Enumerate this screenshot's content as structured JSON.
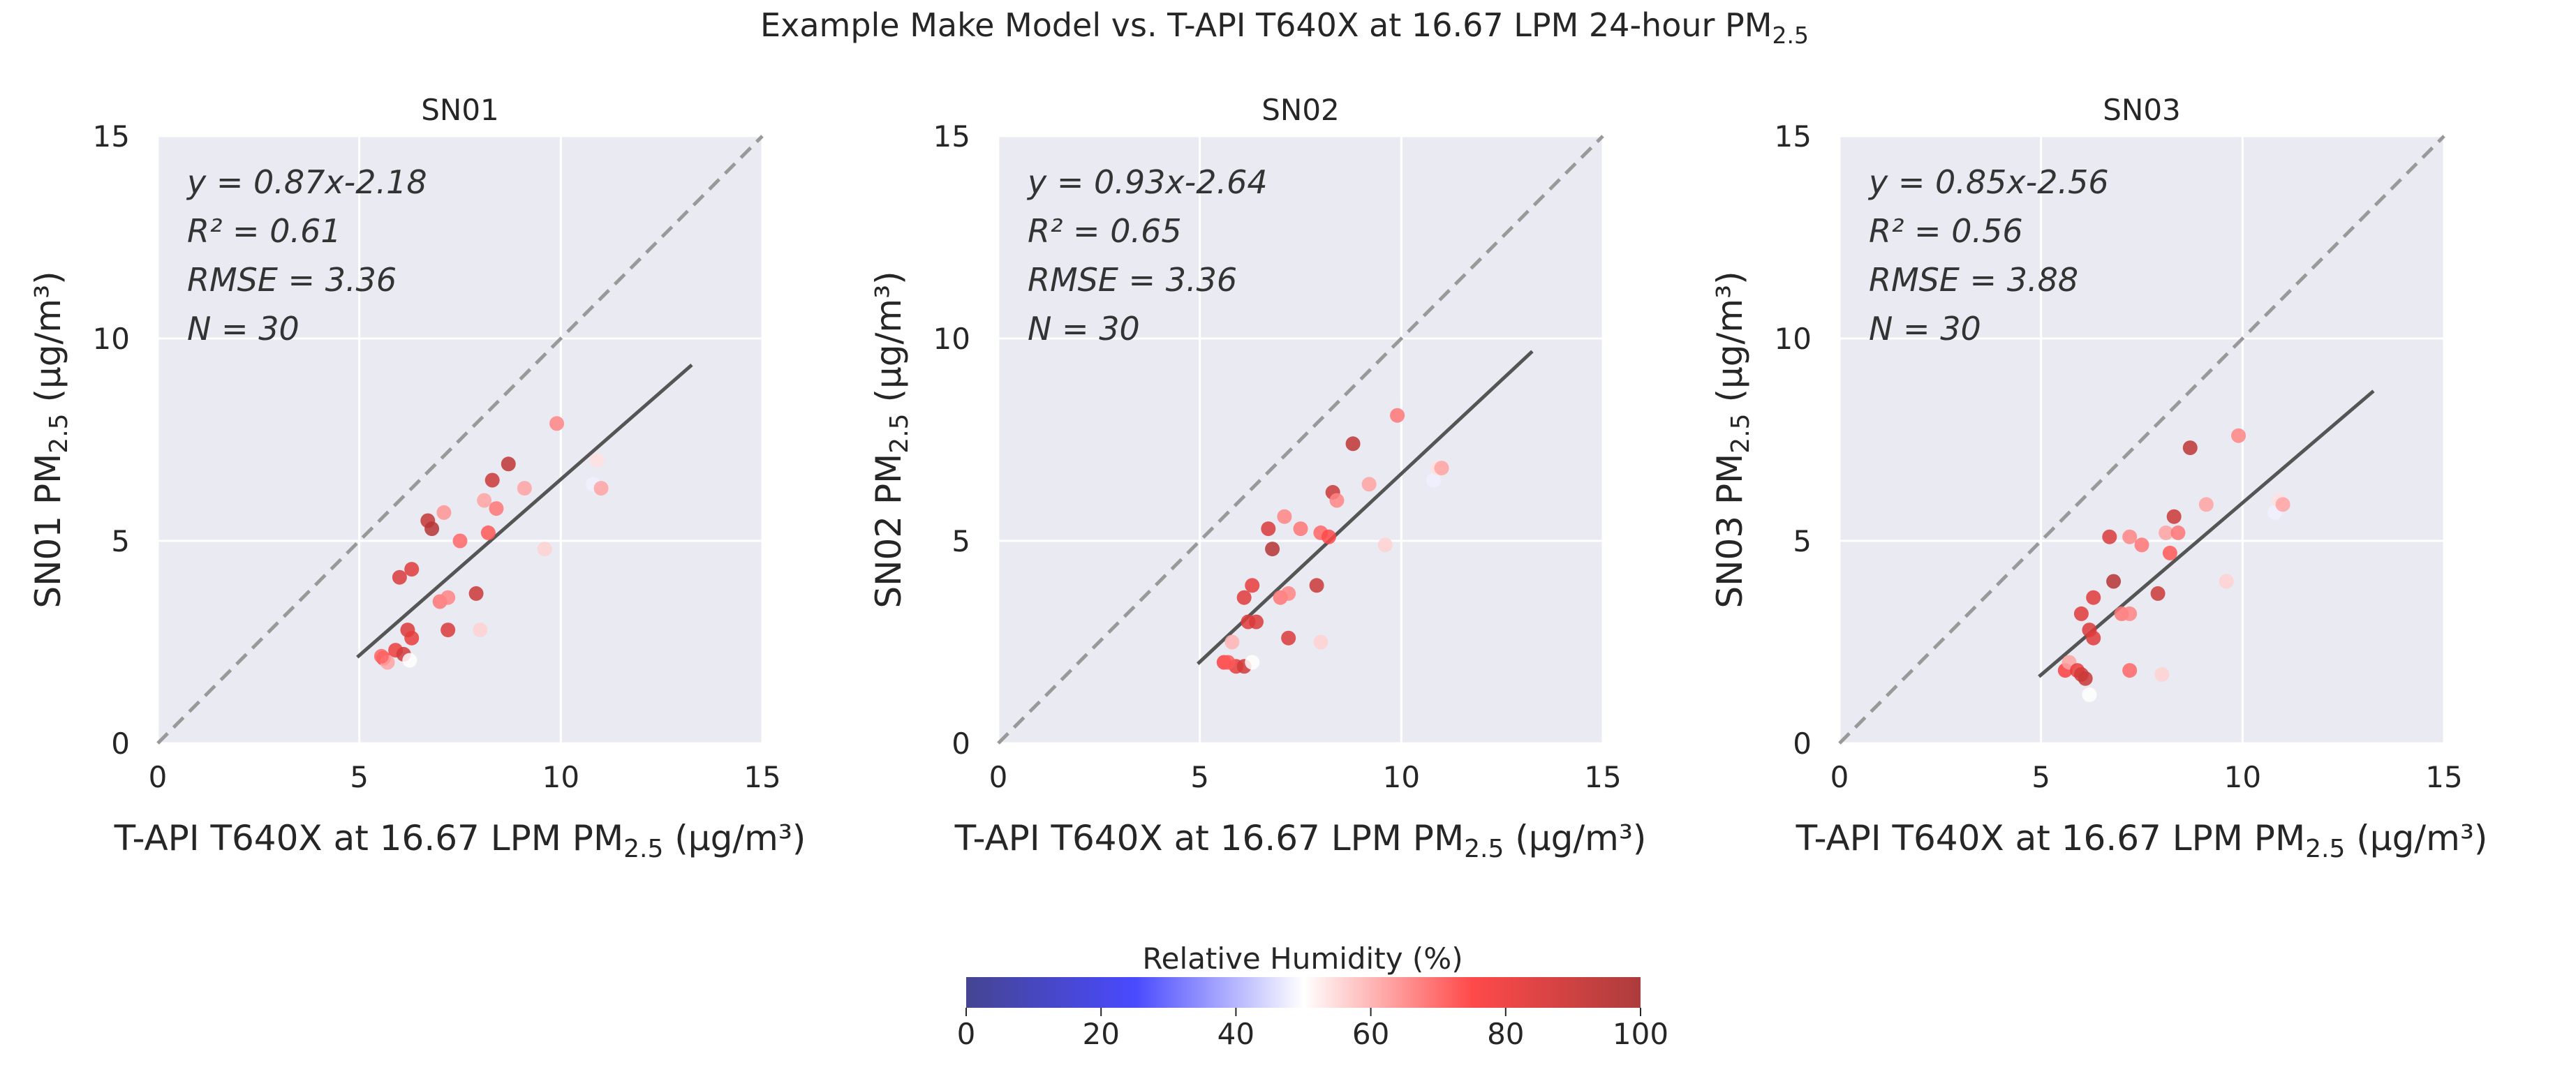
{
  "figure": {
    "title": "Example Make Model vs. T-API T640X at 16.67 LPM 24-hour PM",
    "title_sub": "2.5"
  },
  "colorbar": {
    "label": "Relative Humidity (%)",
    "ticks": [
      "0",
      "20",
      "40",
      "60",
      "80",
      "100"
    ],
    "range": [
      0,
      100
    ],
    "colormap": [
      "#3b3b8c",
      "#4040ff",
      "#ffffff",
      "#ff4040",
      "#a83232"
    ]
  },
  "colors": {
    "panel_bg": "#eaeaf2",
    "grid": "#ffffff",
    "fit_line": "#555555",
    "one_to_one": "#999999",
    "text": "#262626"
  },
  "chart_data": [
    {
      "type": "scatter",
      "title": "SN01",
      "xlabel": "T-API T640X at 16.67 LPM PM",
      "ylabel": "SN01 PM",
      "label_sub": "2.5",
      "label_unit": "(μg/m³)",
      "xlim": [
        0,
        15
      ],
      "ylim": [
        0,
        15
      ],
      "xticks": [
        "0",
        "5",
        "10",
        "15"
      ],
      "yticks": [
        "0",
        "5",
        "10",
        "15"
      ],
      "grid": true,
      "one_to_one_line": true,
      "fit": {
        "slope": 0.87,
        "intercept": -2.18,
        "x_range": [
          4.95,
          13.25
        ]
      },
      "stats": {
        "eq": "y = 0.87x-2.18",
        "r2": "R² = 0.61",
        "rmse": "RMSE = 3.36",
        "n": "N = 30"
      },
      "points": [
        {
          "x": 5.6,
          "y": 2.1,
          "rh": 75
        },
        {
          "x": 5.7,
          "y": 2.0,
          "rh": 62
        },
        {
          "x": 5.9,
          "y": 2.3,
          "rh": 80
        },
        {
          "x": 6.1,
          "y": 2.2,
          "rh": 88
        },
        {
          "x": 6.2,
          "y": 2.8,
          "rh": 85
        },
        {
          "x": 6.3,
          "y": 2.6,
          "rh": 82
        },
        {
          "x": 6.0,
          "y": 4.1,
          "rh": 86
        },
        {
          "x": 6.3,
          "y": 4.3,
          "rh": 84
        },
        {
          "x": 6.7,
          "y": 5.5,
          "rh": 92
        },
        {
          "x": 6.8,
          "y": 5.3,
          "rh": 96
        },
        {
          "x": 7.0,
          "y": 3.5,
          "rh": 68
        },
        {
          "x": 7.2,
          "y": 3.6,
          "rh": 66
        },
        {
          "x": 7.1,
          "y": 5.7,
          "rh": 64
        },
        {
          "x": 7.2,
          "y": 2.8,
          "rh": 86
        },
        {
          "x": 7.5,
          "y": 5.0,
          "rh": 70
        },
        {
          "x": 7.9,
          "y": 3.7,
          "rh": 90
        },
        {
          "x": 8.0,
          "y": 2.8,
          "rh": 56
        },
        {
          "x": 8.1,
          "y": 6.0,
          "rh": 62
        },
        {
          "x": 8.2,
          "y": 5.2,
          "rh": 72
        },
        {
          "x": 8.3,
          "y": 6.5,
          "rh": 90
        },
        {
          "x": 8.4,
          "y": 5.8,
          "rh": 68
        },
        {
          "x": 8.7,
          "y": 6.9,
          "rh": 94
        },
        {
          "x": 9.1,
          "y": 6.3,
          "rh": 62
        },
        {
          "x": 9.6,
          "y": 4.8,
          "rh": 56
        },
        {
          "x": 9.9,
          "y": 7.9,
          "rh": 66
        },
        {
          "x": 10.8,
          "y": 6.4,
          "rh": 48
        },
        {
          "x": 10.9,
          "y": 7.0,
          "rh": 54
        },
        {
          "x": 11.0,
          "y": 6.3,
          "rh": 62
        },
        {
          "x": 6.25,
          "y": 2.05,
          "rh": 50
        },
        {
          "x": 5.55,
          "y": 2.15,
          "rh": 70
        }
      ]
    },
    {
      "type": "scatter",
      "title": "SN02",
      "xlabel": "T-API T640X at 16.67 LPM PM",
      "ylabel": "SN02 PM",
      "label_sub": "2.5",
      "label_unit": "(μg/m³)",
      "xlim": [
        0,
        15
      ],
      "ylim": [
        0,
        15
      ],
      "xticks": [
        "0",
        "5",
        "10",
        "15"
      ],
      "yticks": [
        "0",
        "5",
        "10",
        "15"
      ],
      "grid": true,
      "one_to_one_line": true,
      "fit": {
        "slope": 0.93,
        "intercept": -2.64,
        "x_range": [
          4.95,
          13.25
        ]
      },
      "stats": {
        "eq": "y = 0.93x-2.64",
        "r2": "R² = 0.65",
        "rmse": "RMSE = 3.36",
        "n": "N = 30"
      },
      "points": [
        {
          "x": 5.6,
          "y": 2.0,
          "rh": 76
        },
        {
          "x": 5.8,
          "y": 2.5,
          "rh": 60
        },
        {
          "x": 5.9,
          "y": 1.9,
          "rh": 82
        },
        {
          "x": 6.1,
          "y": 1.9,
          "rh": 88
        },
        {
          "x": 6.2,
          "y": 3.0,
          "rh": 84
        },
        {
          "x": 6.3,
          "y": 2.0,
          "rh": 50
        },
        {
          "x": 6.1,
          "y": 3.6,
          "rh": 84
        },
        {
          "x": 6.3,
          "y": 3.9,
          "rh": 82
        },
        {
          "x": 6.4,
          "y": 3.0,
          "rh": 86
        },
        {
          "x": 6.7,
          "y": 5.3,
          "rh": 86
        },
        {
          "x": 6.8,
          "y": 4.8,
          "rh": 96
        },
        {
          "x": 7.0,
          "y": 3.6,
          "rh": 68
        },
        {
          "x": 7.2,
          "y": 3.7,
          "rh": 66
        },
        {
          "x": 7.1,
          "y": 5.6,
          "rh": 66
        },
        {
          "x": 7.5,
          "y": 5.3,
          "rh": 68
        },
        {
          "x": 7.9,
          "y": 3.9,
          "rh": 90
        },
        {
          "x": 8.0,
          "y": 2.5,
          "rh": 56
        },
        {
          "x": 8.0,
          "y": 5.2,
          "rh": 70
        },
        {
          "x": 8.2,
          "y": 5.1,
          "rh": 74
        },
        {
          "x": 8.3,
          "y": 6.2,
          "rh": 90
        },
        {
          "x": 8.4,
          "y": 6.0,
          "rh": 66
        },
        {
          "x": 8.8,
          "y": 7.4,
          "rh": 94
        },
        {
          "x": 9.2,
          "y": 6.4,
          "rh": 62
        },
        {
          "x": 9.6,
          "y": 4.9,
          "rh": 56
        },
        {
          "x": 9.9,
          "y": 8.1,
          "rh": 68
        },
        {
          "x": 10.8,
          "y": 6.5,
          "rh": 48
        },
        {
          "x": 10.9,
          "y": 6.8,
          "rh": 54
        },
        {
          "x": 11.0,
          "y": 6.8,
          "rh": 62
        },
        {
          "x": 7.2,
          "y": 2.6,
          "rh": 86
        },
        {
          "x": 5.7,
          "y": 2.0,
          "rh": 72
        }
      ]
    },
    {
      "type": "scatter",
      "title": "SN03",
      "xlabel": "T-API T640X at 16.67 LPM PM",
      "ylabel": "SN03 PM",
      "label_sub": "2.5",
      "label_unit": "(μg/m³)",
      "xlim": [
        0,
        15
      ],
      "ylim": [
        0,
        15
      ],
      "xticks": [
        "0",
        "5",
        "10",
        "15"
      ],
      "yticks": [
        "0",
        "5",
        "10",
        "15"
      ],
      "grid": true,
      "one_to_one_line": true,
      "fit": {
        "slope": 0.85,
        "intercept": -2.56,
        "x_range": [
          4.95,
          13.25
        ]
      },
      "stats": {
        "eq": "y = 0.85x-2.56",
        "r2": "R² = 0.56",
        "rmse": "RMSE = 3.88",
        "n": "N = 30"
      },
      "points": [
        {
          "x": 5.6,
          "y": 1.8,
          "rh": 76
        },
        {
          "x": 5.7,
          "y": 2.0,
          "rh": 62
        },
        {
          "x": 5.9,
          "y": 1.8,
          "rh": 82
        },
        {
          "x": 6.0,
          "y": 1.7,
          "rh": 88
        },
        {
          "x": 6.1,
          "y": 1.6,
          "rh": 90
        },
        {
          "x": 6.2,
          "y": 1.2,
          "rh": 50
        },
        {
          "x": 6.0,
          "y": 3.2,
          "rh": 84
        },
        {
          "x": 6.2,
          "y": 2.8,
          "rh": 86
        },
        {
          "x": 6.3,
          "y": 3.6,
          "rh": 84
        },
        {
          "x": 6.3,
          "y": 2.6,
          "rh": 84
        },
        {
          "x": 6.7,
          "y": 5.1,
          "rh": 86
        },
        {
          "x": 6.8,
          "y": 4.0,
          "rh": 96
        },
        {
          "x": 7.0,
          "y": 3.2,
          "rh": 68
        },
        {
          "x": 7.2,
          "y": 3.2,
          "rh": 66
        },
        {
          "x": 7.2,
          "y": 5.1,
          "rh": 66
        },
        {
          "x": 7.2,
          "y": 1.8,
          "rh": 70
        },
        {
          "x": 7.5,
          "y": 4.9,
          "rh": 68
        },
        {
          "x": 7.9,
          "y": 3.7,
          "rh": 90
        },
        {
          "x": 8.0,
          "y": 1.7,
          "rh": 56
        },
        {
          "x": 8.1,
          "y": 5.2,
          "rh": 62
        },
        {
          "x": 8.2,
          "y": 4.7,
          "rh": 72
        },
        {
          "x": 8.3,
          "y": 5.6,
          "rh": 90
        },
        {
          "x": 8.4,
          "y": 5.2,
          "rh": 68
        },
        {
          "x": 8.7,
          "y": 7.3,
          "rh": 94
        },
        {
          "x": 9.1,
          "y": 5.9,
          "rh": 62
        },
        {
          "x": 9.6,
          "y": 4.0,
          "rh": 56
        },
        {
          "x": 9.9,
          "y": 7.6,
          "rh": 66
        },
        {
          "x": 10.8,
          "y": 5.7,
          "rh": 48
        },
        {
          "x": 10.9,
          "y": 6.0,
          "rh": 54
        },
        {
          "x": 11.0,
          "y": 5.9,
          "rh": 62
        }
      ]
    }
  ]
}
